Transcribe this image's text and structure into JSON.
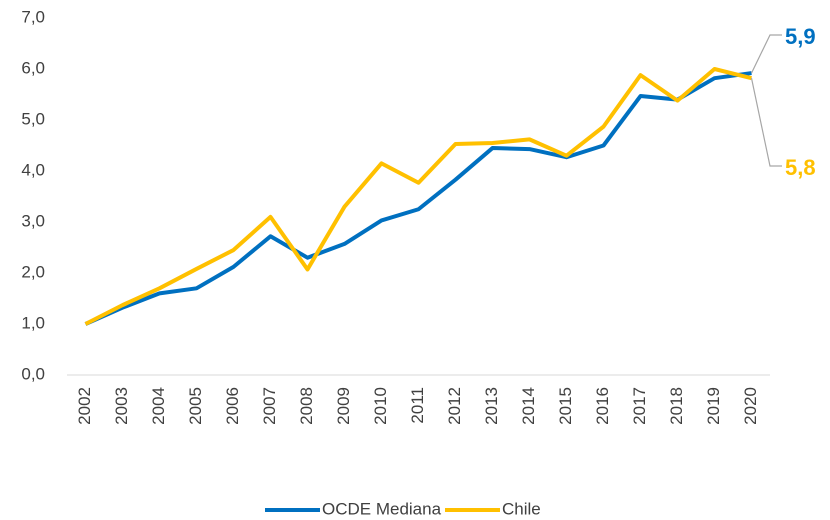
{
  "chart_data": {
    "type": "line",
    "categories": [
      "2002",
      "2003",
      "2004",
      "2005",
      "2006",
      "2007",
      "2008",
      "2009",
      "2010",
      "2011",
      "2012",
      "2013",
      "2014",
      "2015",
      "2016",
      "2017",
      "2018",
      "2019",
      "2020"
    ],
    "series": [
      {
        "name": "OCDE Mediana",
        "color": "#0070c0",
        "values": [
          1.0,
          1.32,
          1.6,
          1.7,
          2.12,
          2.72,
          2.3,
          2.57,
          3.03,
          3.25,
          3.83,
          4.45,
          4.43,
          4.27,
          4.5,
          5.47,
          5.4,
          5.82,
          5.92
        ],
        "value_labels": [
          null,
          null,
          null,
          null,
          null,
          null,
          null,
          null,
          null,
          null,
          null,
          null,
          null,
          null,
          null,
          null,
          null,
          null,
          "5,9"
        ]
      },
      {
        "name": "Chile",
        "color": "#ffc000",
        "values": [
          1.0,
          1.37,
          1.7,
          2.08,
          2.45,
          3.1,
          2.07,
          3.3,
          4.15,
          3.77,
          4.53,
          4.55,
          4.62,
          4.3,
          4.87,
          5.88,
          5.38,
          6.0,
          5.82
        ],
        "value_labels": [
          null,
          null,
          null,
          null,
          null,
          null,
          null,
          null,
          null,
          null,
          null,
          null,
          null,
          null,
          null,
          null,
          null,
          null,
          "5,8"
        ]
      }
    ],
    "ylim": [
      0,
      7
    ],
    "yticks": [
      {
        "value": 0,
        "label": "0,0"
      },
      {
        "value": 1,
        "label": "1,0"
      },
      {
        "value": 2,
        "label": "2,0"
      },
      {
        "value": 3,
        "label": "3,0"
      },
      {
        "value": 4,
        "label": "4,0"
      },
      {
        "value": 5,
        "label": "5,0"
      },
      {
        "value": 6,
        "label": "6,0"
      },
      {
        "value": 7,
        "label": "7,0"
      }
    ],
    "grid": false,
    "legend": "bottom"
  }
}
